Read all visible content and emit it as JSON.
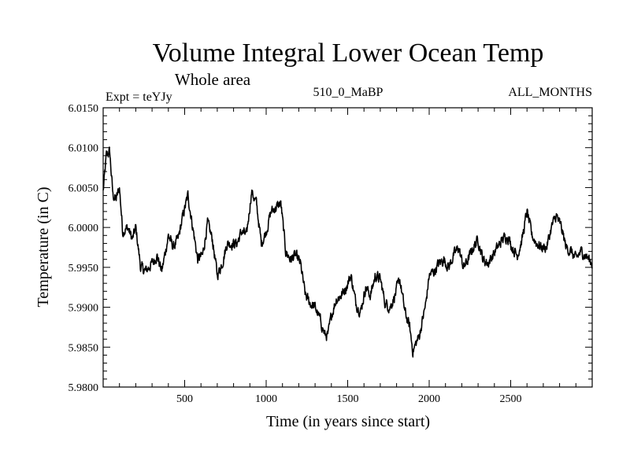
{
  "chart_data": {
    "type": "line",
    "title": "Volume Integral Lower Ocean Temp",
    "subtitle": "Whole area",
    "experiment": "Expt = teYJy",
    "run_label": "510_0_MaBP",
    "months_label": "ALL_MONTHS",
    "xlabel": "Time (in years since start)",
    "ylabel": "Temperature (in C)",
    "xlim": [
      0,
      3000
    ],
    "ylim": [
      5.98,
      6.015
    ],
    "xticks": [
      500,
      1000,
      1500,
      2000,
      2500
    ],
    "xtick_labels": [
      "500",
      "1000",
      "1500",
      "2000",
      "2500"
    ],
    "yticks": [
      5.98,
      5.985,
      5.99,
      5.995,
      6.0,
      6.005,
      6.01,
      6.015
    ],
    "ytick_labels": [
      "5.9800",
      "5.9850",
      "5.9900",
      "5.9950",
      "6.0000",
      "6.0050",
      "6.0100",
      "6.0150"
    ],
    "series": [
      {
        "name": "Volume integral lower ocean temperature",
        "x": [
          0,
          20,
          40,
          60,
          80,
          100,
          120,
          150,
          180,
          200,
          230,
          260,
          300,
          330,
          360,
          400,
          430,
          460,
          490,
          520,
          550,
          580,
          610,
          640,
          670,
          700,
          730,
          760,
          790,
          820,
          850,
          880,
          910,
          940,
          970,
          1000,
          1030,
          1060,
          1090,
          1120,
          1150,
          1180,
          1210,
          1240,
          1270,
          1300,
          1330,
          1360,
          1380,
          1400,
          1430,
          1460,
          1490,
          1520,
          1550,
          1580,
          1610,
          1640,
          1670,
          1700,
          1730,
          1760,
          1790,
          1820,
          1850,
          1880,
          1900,
          1920,
          1940,
          1960,
          1980,
          2000,
          2030,
          2060,
          2090,
          2120,
          2150,
          2180,
          2210,
          2240,
          2270,
          2300,
          2330,
          2360,
          2390,
          2420,
          2450,
          2480,
          2510,
          2540,
          2570,
          2600,
          2630,
          2660,
          2690,
          2720,
          2750,
          2780,
          2810,
          2840,
          2870,
          2900,
          2930,
          2960,
          3000
        ],
        "y": [
          6.0045,
          6.009,
          6.0095,
          6.004,
          6.0035,
          6.005,
          5.9995,
          6.0,
          5.9985,
          6.0,
          5.995,
          5.9945,
          5.9955,
          5.9965,
          5.9945,
          5.999,
          5.9975,
          5.9985,
          6.0015,
          6.004,
          6.0,
          5.996,
          5.9965,
          6.0005,
          5.9985,
          5.994,
          5.9955,
          5.998,
          5.998,
          5.998,
          5.9995,
          5.999,
          6.0045,
          6.003,
          5.998,
          5.9995,
          6.002,
          6.0025,
          6.003,
          5.997,
          5.996,
          5.9965,
          5.9955,
          5.9915,
          5.9905,
          5.99,
          5.9885,
          5.9865,
          5.9865,
          5.989,
          5.991,
          5.9915,
          5.9925,
          5.994,
          5.9905,
          5.9895,
          5.9925,
          5.9915,
          5.994,
          5.9935,
          5.9905,
          5.99,
          5.9915,
          5.9935,
          5.9895,
          5.9875,
          5.9845,
          5.9855,
          5.9865,
          5.9885,
          5.9905,
          5.994,
          5.9945,
          5.9955,
          5.996,
          5.995,
          5.9965,
          5.9975,
          5.995,
          5.996,
          5.9975,
          5.9985,
          5.996,
          5.9955,
          5.9965,
          5.9975,
          5.9985,
          5.999,
          5.9975,
          5.9965,
          5.9985,
          6.002,
          5.999,
          5.998,
          5.9975,
          5.9975,
          6.0,
          6.0015,
          6.0,
          5.9975,
          5.997,
          5.996,
          5.997,
          5.9965,
          5.9955
        ]
      }
    ],
    "grid": false
  }
}
